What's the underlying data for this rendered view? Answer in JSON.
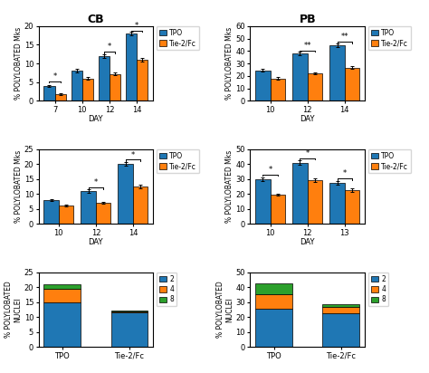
{
  "chart_data": [
    {
      "type": "bar",
      "title": "CB",
      "x_label": "DAY",
      "y_label": "% POLYLOBATED Mks",
      "categories": [
        "7",
        "10",
        "12",
        "14"
      ],
      "series": [
        {
          "name": "TPO",
          "values": [
            4.0,
            8.1,
            12.0,
            18.0
          ],
          "errors": [
            0.3,
            0.4,
            0.5,
            0.5
          ]
        },
        {
          "name": "Tie-2/Fc",
          "values": [
            1.8,
            6.0,
            7.2,
            11.0
          ],
          "errors": [
            0.2,
            0.3,
            0.4,
            0.4
          ]
        }
      ],
      "ylim": [
        0,
        20
      ],
      "yticks": [
        0,
        5,
        10,
        15,
        20
      ],
      "annotations": [
        {
          "text": "*",
          "category": "7",
          "y": 5.2
        },
        {
          "text": "*",
          "category": "12",
          "y": 13.2
        },
        {
          "text": "*",
          "category": "14",
          "y": 18.8
        }
      ],
      "legend": "upper left"
    },
    {
      "type": "bar",
      "title": "PB",
      "x_label": "DAY",
      "y_label": "% POLYLOBATED Mks",
      "categories": [
        "10",
        "12",
        "14"
      ],
      "series": [
        {
          "name": "TPO",
          "values": [
            24.5,
            38.0,
            44.5
          ],
          "errors": [
            1.0,
            1.2,
            1.5
          ]
        },
        {
          "name": "Tie-2/Fc",
          "values": [
            18.0,
            22.0,
            26.5
          ],
          "errors": [
            0.8,
            0.8,
            1.0
          ]
        }
      ],
      "ylim": [
        0,
        60
      ],
      "yticks": [
        0,
        10,
        20,
        30,
        40,
        50,
        60
      ],
      "annotations": [
        {
          "text": "**",
          "category": "12",
          "y": 40.5
        },
        {
          "text": "**",
          "category": "14",
          "y": 47.5
        }
      ],
      "legend": "upper left"
    },
    {
      "type": "bar",
      "x_label": "DAY",
      "y_label": "% POLYLOBATED Mks",
      "categories": [
        "10",
        "12",
        "14"
      ],
      "series": [
        {
          "name": "TPO",
          "values": [
            8.0,
            11.0,
            20.0
          ],
          "errors": [
            0.4,
            0.5,
            0.6
          ]
        },
        {
          "name": "Tie-2/Fc",
          "values": [
            6.2,
            7.0,
            12.5
          ],
          "errors": [
            0.3,
            0.3,
            0.5
          ]
        }
      ],
      "ylim": [
        0,
        25
      ],
      "yticks": [
        0,
        5,
        10,
        15,
        20,
        25
      ],
      "annotations": [
        {
          "text": "*",
          "category": "12",
          "y": 12.2
        },
        {
          "text": "*",
          "category": "14",
          "y": 21.5
        }
      ],
      "legend": "upper left"
    },
    {
      "type": "bar",
      "x_label": "DAY",
      "y_label": "% POLYLOBATED Mks",
      "categories": [
        "10",
        "12",
        "13"
      ],
      "series": [
        {
          "name": "TPO",
          "values": [
            30.0,
            41.0,
            27.5
          ],
          "errors": [
            1.2,
            1.5,
            1.0
          ]
        },
        {
          "name": "Tie-2/Fc",
          "values": [
            19.5,
            29.0,
            22.5
          ],
          "errors": [
            0.8,
            1.2,
            1.0
          ]
        }
      ],
      "ylim": [
        0,
        50
      ],
      "yticks": [
        0,
        10,
        20,
        30,
        40,
        50
      ],
      "annotations": [
        {
          "text": "*",
          "category": "10",
          "y": 33.0
        },
        {
          "text": "*",
          "category": "12",
          "y": 44.0
        },
        {
          "text": "*",
          "category": "13",
          "y": 30.5
        }
      ],
      "legend": "upper left"
    },
    {
      "type": "bar",
      "stacked": true,
      "y_label": "% POLYLOBATED\nNUCLEI",
      "categories": [
        "TPO",
        "Tie-2/Fc"
      ],
      "series": [
        {
          "name": "2",
          "values": [
            15.0,
            11.5
          ]
        },
        {
          "name": "4",
          "values": [
            4.5,
            0.5
          ]
        },
        {
          "name": "8",
          "values": [
            1.5,
            0.3
          ]
        }
      ],
      "ylim": [
        0,
        25
      ],
      "yticks": [
        0,
        5,
        10,
        15,
        20,
        25
      ],
      "legend": "upper left"
    },
    {
      "type": "bar",
      "stacked": true,
      "y_label": "% POLYLOBATED\nNUCLEI",
      "categories": [
        "TPO",
        "Tie-2/Fc"
      ],
      "series": [
        {
          "name": "2",
          "values": [
            25.5,
            22.5
          ]
        },
        {
          "name": "4",
          "values": [
            10.0,
            4.0
          ]
        },
        {
          "name": "8",
          "values": [
            7.0,
            2.0
          ]
        }
      ],
      "ylim": [
        0,
        50
      ],
      "yticks": [
        0,
        10,
        20,
        30,
        40,
        50
      ],
      "legend": "upper left"
    }
  ]
}
